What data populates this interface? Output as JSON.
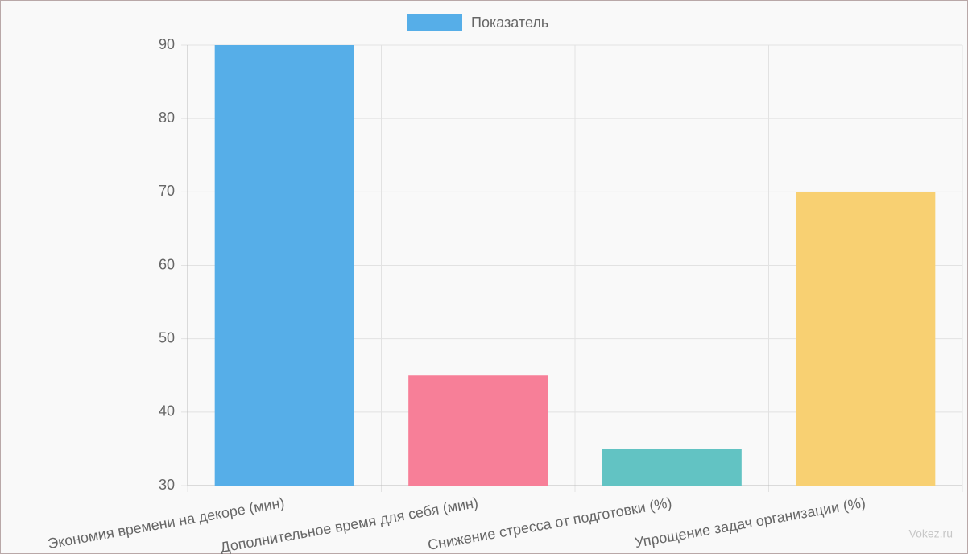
{
  "chart_data": {
    "type": "bar",
    "categories": [
      "Экономия времени на декоре (мин)",
      "Дополнительное время для себя (мин)",
      "Снижение стресса от подготовки (%)",
      "Упрощение задач организации (%)"
    ],
    "series": [
      {
        "name": "Показатель",
        "color": "#56aee8",
        "colors": [
          "#56aee8",
          "#f77f98",
          "#62c3c3",
          "#f8d072"
        ],
        "values": [
          90,
          45,
          35,
          70
        ]
      }
    ],
    "ylim": [
      30,
      90
    ],
    "yticks": [
      30,
      40,
      50,
      60,
      70,
      80,
      90
    ],
    "grid": true,
    "legend": "top"
  },
  "watermark": "Vokez.ru"
}
